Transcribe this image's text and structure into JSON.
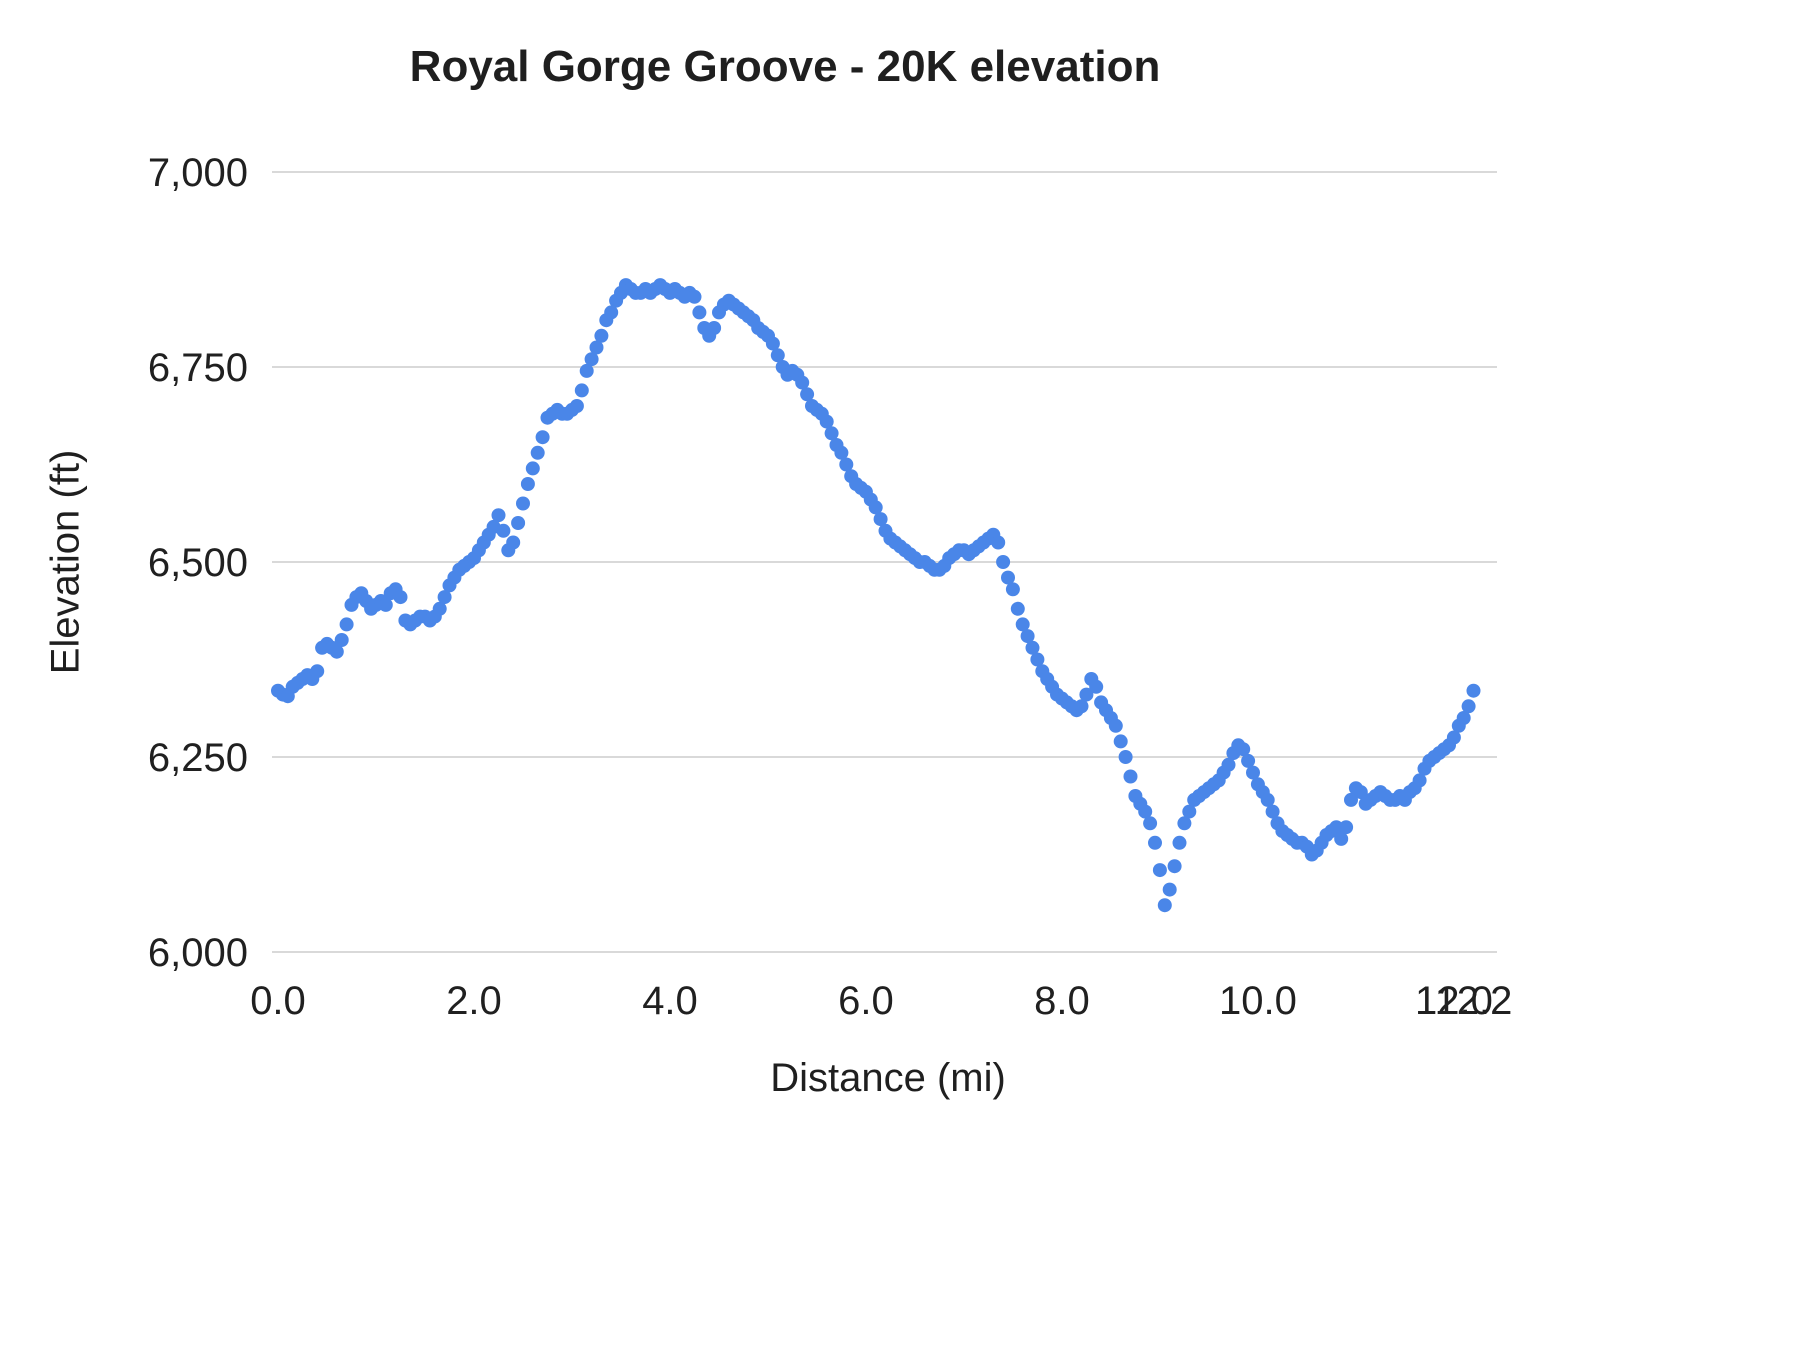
{
  "chart_data": {
    "type": "scatter",
    "title": "Royal Gorge Groove - 20K elevation",
    "xlabel": "Distance (mi)",
    "ylabel": "Elevation (ft)",
    "xlim": [
      0,
      12.44
    ],
    "ylim": [
      6000,
      7000
    ],
    "grid": "horizontal",
    "legend": "none",
    "grid_color": "#d9d9d9",
    "text_color": "#202020",
    "series_color": "#4a86e8",
    "point_radius": 7,
    "x_ticks": [
      {
        "v": 0,
        "label": "0.0"
      },
      {
        "v": 2,
        "label": "2.0"
      },
      {
        "v": 4,
        "label": "4.0"
      },
      {
        "v": 6,
        "label": "6.0"
      },
      {
        "v": 8,
        "label": "8.0"
      },
      {
        "v": 10,
        "label": "10.0"
      },
      {
        "v": 12,
        "label": "12.0"
      },
      {
        "v": 12.2,
        "label": "12.2"
      }
    ],
    "y_ticks": [
      {
        "v": 6000,
        "label": "6,000"
      },
      {
        "v": 6250,
        "label": "6,250"
      },
      {
        "v": 6500,
        "label": "6,500"
      },
      {
        "v": 6750,
        "label": "6,750"
      },
      {
        "v": 7000,
        "label": "7,000"
      }
    ],
    "series": [
      {
        "name": "elevation",
        "points": [
          [
            0.0,
            6335
          ],
          [
            0.05,
            6330
          ],
          [
            0.1,
            6328
          ],
          [
            0.15,
            6340
          ],
          [
            0.2,
            6345
          ],
          [
            0.25,
            6350
          ],
          [
            0.3,
            6355
          ],
          [
            0.35,
            6350
          ],
          [
            0.4,
            6360
          ],
          [
            0.45,
            6390
          ],
          [
            0.5,
            6395
          ],
          [
            0.55,
            6390
          ],
          [
            0.6,
            6385
          ],
          [
            0.65,
            6400
          ],
          [
            0.7,
            6420
          ],
          [
            0.75,
            6445
          ],
          [
            0.8,
            6455
          ],
          [
            0.85,
            6460
          ],
          [
            0.9,
            6450
          ],
          [
            0.95,
            6440
          ],
          [
            1.0,
            6445
          ],
          [
            1.05,
            6450
          ],
          [
            1.1,
            6445
          ],
          [
            1.15,
            6460
          ],
          [
            1.2,
            6465
          ],
          [
            1.25,
            6455
          ],
          [
            1.3,
            6425
          ],
          [
            1.35,
            6420
          ],
          [
            1.4,
            6425
          ],
          [
            1.45,
            6430
          ],
          [
            1.5,
            6430
          ],
          [
            1.55,
            6425
          ],
          [
            1.6,
            6430
          ],
          [
            1.65,
            6440
          ],
          [
            1.7,
            6455
          ],
          [
            1.75,
            6470
          ],
          [
            1.8,
            6480
          ],
          [
            1.85,
            6490
          ],
          [
            1.9,
            6495
          ],
          [
            1.95,
            6500
          ],
          [
            2.0,
            6505
          ],
          [
            2.05,
            6515
          ],
          [
            2.1,
            6525
          ],
          [
            2.15,
            6535
          ],
          [
            2.2,
            6545
          ],
          [
            2.25,
            6560
          ],
          [
            2.3,
            6540
          ],
          [
            2.35,
            6515
          ],
          [
            2.4,
            6525
          ],
          [
            2.45,
            6550
          ],
          [
            2.5,
            6575
          ],
          [
            2.55,
            6600
          ],
          [
            2.6,
            6620
          ],
          [
            2.65,
            6640
          ],
          [
            2.7,
            6660
          ],
          [
            2.75,
            6685
          ],
          [
            2.8,
            6690
          ],
          [
            2.85,
            6695
          ],
          [
            2.9,
            6690
          ],
          [
            2.95,
            6690
          ],
          [
            3.0,
            6695
          ],
          [
            3.05,
            6700
          ],
          [
            3.1,
            6720
          ],
          [
            3.15,
            6745
          ],
          [
            3.2,
            6760
          ],
          [
            3.25,
            6775
          ],
          [
            3.3,
            6790
          ],
          [
            3.35,
            6810
          ],
          [
            3.4,
            6820
          ],
          [
            3.45,
            6835
          ],
          [
            3.5,
            6845
          ],
          [
            3.55,
            6855
          ],
          [
            3.6,
            6850
          ],
          [
            3.65,
            6845
          ],
          [
            3.7,
            6845
          ],
          [
            3.75,
            6850
          ],
          [
            3.8,
            6845
          ],
          [
            3.85,
            6850
          ],
          [
            3.9,
            6855
          ],
          [
            3.95,
            6850
          ],
          [
            4.0,
            6845
          ],
          [
            4.05,
            6850
          ],
          [
            4.1,
            6845
          ],
          [
            4.15,
            6840
          ],
          [
            4.2,
            6845
          ],
          [
            4.25,
            6840
          ],
          [
            4.3,
            6820
          ],
          [
            4.35,
            6800
          ],
          [
            4.4,
            6790
          ],
          [
            4.45,
            6800
          ],
          [
            4.5,
            6820
          ],
          [
            4.55,
            6830
          ],
          [
            4.6,
            6835
          ],
          [
            4.65,
            6830
          ],
          [
            4.7,
            6825
          ],
          [
            4.75,
            6820
          ],
          [
            4.8,
            6815
          ],
          [
            4.85,
            6810
          ],
          [
            4.9,
            6800
          ],
          [
            4.95,
            6795
          ],
          [
            5.0,
            6790
          ],
          [
            5.05,
            6780
          ],
          [
            5.1,
            6765
          ],
          [
            5.15,
            6750
          ],
          [
            5.2,
            6740
          ],
          [
            5.25,
            6745
          ],
          [
            5.3,
            6740
          ],
          [
            5.35,
            6730
          ],
          [
            5.4,
            6715
          ],
          [
            5.45,
            6700
          ],
          [
            5.5,
            6695
          ],
          [
            5.55,
            6690
          ],
          [
            5.6,
            6680
          ],
          [
            5.65,
            6665
          ],
          [
            5.7,
            6650
          ],
          [
            5.75,
            6640
          ],
          [
            5.8,
            6625
          ],
          [
            5.85,
            6610
          ],
          [
            5.9,
            6600
          ],
          [
            5.95,
            6595
          ],
          [
            6.0,
            6590
          ],
          [
            6.05,
            6580
          ],
          [
            6.1,
            6570
          ],
          [
            6.15,
            6555
          ],
          [
            6.2,
            6540
          ],
          [
            6.25,
            6530
          ],
          [
            6.3,
            6525
          ],
          [
            6.35,
            6520
          ],
          [
            6.4,
            6515
          ],
          [
            6.45,
            6510
          ],
          [
            6.5,
            6505
          ],
          [
            6.55,
            6500
          ],
          [
            6.6,
            6500
          ],
          [
            6.65,
            6495
          ],
          [
            6.7,
            6490
          ],
          [
            6.75,
            6490
          ],
          [
            6.8,
            6495
          ],
          [
            6.85,
            6505
          ],
          [
            6.9,
            6510
          ],
          [
            6.95,
            6515
          ],
          [
            7.0,
            6515
          ],
          [
            7.05,
            6510
          ],
          [
            7.1,
            6515
          ],
          [
            7.15,
            6520
          ],
          [
            7.2,
            6525
          ],
          [
            7.25,
            6530
          ],
          [
            7.3,
            6535
          ],
          [
            7.35,
            6525
          ],
          [
            7.4,
            6500
          ],
          [
            7.45,
            6480
          ],
          [
            7.5,
            6465
          ],
          [
            7.55,
            6440
          ],
          [
            7.6,
            6420
          ],
          [
            7.65,
            6405
          ],
          [
            7.7,
            6390
          ],
          [
            7.75,
            6375
          ],
          [
            7.8,
            6360
          ],
          [
            7.85,
            6350
          ],
          [
            7.9,
            6340
          ],
          [
            7.95,
            6330
          ],
          [
            8.0,
            6325
          ],
          [
            8.05,
            6320
          ],
          [
            8.1,
            6315
          ],
          [
            8.15,
            6310
          ],
          [
            8.2,
            6315
          ],
          [
            8.25,
            6330
          ],
          [
            8.3,
            6350
          ],
          [
            8.35,
            6340
          ],
          [
            8.4,
            6320
          ],
          [
            8.45,
            6310
          ],
          [
            8.5,
            6300
          ],
          [
            8.55,
            6290
          ],
          [
            8.6,
            6270
          ],
          [
            8.65,
            6250
          ],
          [
            8.7,
            6225
          ],
          [
            8.75,
            6200
          ],
          [
            8.8,
            6190
          ],
          [
            8.85,
            6180
          ],
          [
            8.9,
            6165
          ],
          [
            8.95,
            6140
          ],
          [
            9.0,
            6105
          ],
          [
            9.05,
            6060
          ],
          [
            9.1,
            6080
          ],
          [
            9.15,
            6110
          ],
          [
            9.2,
            6140
          ],
          [
            9.25,
            6165
          ],
          [
            9.3,
            6180
          ],
          [
            9.35,
            6195
          ],
          [
            9.4,
            6200
          ],
          [
            9.45,
            6205
          ],
          [
            9.5,
            6210
          ],
          [
            9.55,
            6215
          ],
          [
            9.6,
            6220
          ],
          [
            9.65,
            6230
          ],
          [
            9.7,
            6240
          ],
          [
            9.75,
            6255
          ],
          [
            9.8,
            6265
          ],
          [
            9.85,
            6260
          ],
          [
            9.9,
            6245
          ],
          [
            9.95,
            6230
          ],
          [
            10.0,
            6215
          ],
          [
            10.05,
            6205
          ],
          [
            10.1,
            6195
          ],
          [
            10.15,
            6180
          ],
          [
            10.2,
            6165
          ],
          [
            10.25,
            6155
          ],
          [
            10.3,
            6150
          ],
          [
            10.35,
            6145
          ],
          [
            10.4,
            6140
          ],
          [
            10.45,
            6140
          ],
          [
            10.5,
            6135
          ],
          [
            10.55,
            6125
          ],
          [
            10.6,
            6130
          ],
          [
            10.65,
            6140
          ],
          [
            10.7,
            6150
          ],
          [
            10.75,
            6155
          ],
          [
            10.8,
            6160
          ],
          [
            10.85,
            6145
          ],
          [
            10.9,
            6160
          ],
          [
            10.95,
            6195
          ],
          [
            11.0,
            6210
          ],
          [
            11.05,
            6205
          ],
          [
            11.1,
            6190
          ],
          [
            11.15,
            6195
          ],
          [
            11.2,
            6200
          ],
          [
            11.25,
            6205
          ],
          [
            11.3,
            6200
          ],
          [
            11.35,
            6195
          ],
          [
            11.4,
            6195
          ],
          [
            11.45,
            6200
          ],
          [
            11.5,
            6195
          ],
          [
            11.55,
            6205
          ],
          [
            11.6,
            6210
          ],
          [
            11.65,
            6220
          ],
          [
            11.7,
            6235
          ],
          [
            11.75,
            6245
          ],
          [
            11.8,
            6250
          ],
          [
            11.85,
            6255
          ],
          [
            11.9,
            6260
          ],
          [
            11.95,
            6265
          ],
          [
            12.0,
            6275
          ],
          [
            12.05,
            6290
          ],
          [
            12.1,
            6300
          ],
          [
            12.15,
            6315
          ],
          [
            12.2,
            6335
          ]
        ]
      }
    ]
  }
}
